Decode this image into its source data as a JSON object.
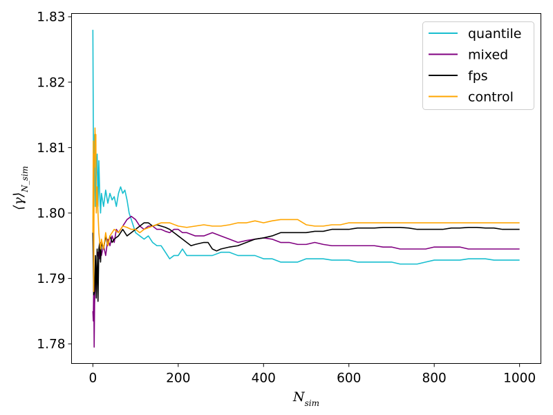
{
  "chart_data": {
    "type": "line",
    "title": "",
    "xlabel": "N_sim",
    "ylabel": "⟨γ⟩_{N_sim}",
    "xlim": [
      -50,
      1050
    ],
    "ylim": [
      1.777,
      1.8305
    ],
    "xticks": [
      0,
      200,
      400,
      600,
      800,
      1000
    ],
    "yticks": [
      1.78,
      1.79,
      1.8,
      1.81,
      1.82,
      1.83
    ],
    "xtick_labels": [
      "0",
      "200",
      "400",
      "600",
      "800",
      "1000"
    ],
    "ytick_labels": [
      "1.78",
      "1.79",
      "1.80",
      "1.81",
      "1.82",
      "1.83"
    ],
    "grid": false,
    "legend_position": "top-right",
    "series": [
      {
        "name": "quantile",
        "color": "#17becf",
        "x": [
          0,
          2,
          4,
          6,
          8,
          10,
          12,
          14,
          16,
          18,
          20,
          25,
          30,
          35,
          40,
          45,
          50,
          55,
          60,
          65,
          70,
          75,
          80,
          85,
          90,
          95,
          100,
          110,
          120,
          130,
          140,
          150,
          160,
          170,
          180,
          190,
          200,
          210,
          220,
          240,
          260,
          280,
          300,
          320,
          340,
          360,
          380,
          400,
          420,
          440,
          460,
          480,
          500,
          520,
          540,
          560,
          580,
          600,
          620,
          640,
          660,
          680,
          700,
          720,
          740,
          760,
          780,
          800,
          820,
          840,
          860,
          880,
          900,
          920,
          940,
          960,
          980,
          1000
        ],
        "y": [
          1.828,
          1.799,
          1.812,
          1.801,
          1.806,
          1.809,
          1.801,
          1.808,
          1.803,
          1.8,
          1.803,
          1.801,
          1.8035,
          1.8015,
          1.803,
          1.802,
          1.8025,
          1.801,
          1.803,
          1.804,
          1.803,
          1.8035,
          1.802,
          1.8,
          1.799,
          1.798,
          1.797,
          1.7965,
          1.796,
          1.7965,
          1.7955,
          1.795,
          1.795,
          1.794,
          1.793,
          1.7935,
          1.7935,
          1.7945,
          1.7935,
          1.7935,
          1.7935,
          1.7935,
          1.794,
          1.794,
          1.7935,
          1.7935,
          1.7935,
          1.793,
          1.793,
          1.7925,
          1.7925,
          1.7925,
          1.793,
          1.793,
          1.793,
          1.7928,
          1.7928,
          1.7928,
          1.7925,
          1.7925,
          1.7925,
          1.7925,
          1.7925,
          1.7922,
          1.7922,
          1.7922,
          1.7925,
          1.7928,
          1.7928,
          1.7928,
          1.7928,
          1.793,
          1.793,
          1.793,
          1.7928,
          1.7928,
          1.7928,
          1.7928
        ]
      },
      {
        "name": "mixed",
        "color": "#800080",
        "x": [
          0,
          1,
          2,
          3,
          4,
          6,
          8,
          10,
          12,
          15,
          18,
          20,
          25,
          30,
          35,
          40,
          45,
          50,
          55,
          60,
          70,
          80,
          90,
          100,
          110,
          120,
          130,
          140,
          150,
          160,
          170,
          180,
          190,
          200,
          210,
          220,
          240,
          260,
          280,
          300,
          320,
          340,
          360,
          380,
          400,
          420,
          440,
          460,
          480,
          500,
          520,
          540,
          560,
          580,
          600,
          620,
          640,
          660,
          680,
          700,
          720,
          740,
          760,
          780,
          800,
          820,
          840,
          860,
          880,
          900,
          920,
          940,
          960,
          980,
          1000
        ],
        "y": [
          1.785,
          1.7835,
          1.789,
          1.7795,
          1.786,
          1.791,
          1.789,
          1.793,
          1.794,
          1.793,
          1.7955,
          1.7935,
          1.795,
          1.7935,
          1.796,
          1.795,
          1.7965,
          1.7955,
          1.7975,
          1.797,
          1.798,
          1.799,
          1.7995,
          1.799,
          1.798,
          1.7975,
          1.798,
          1.798,
          1.7975,
          1.7975,
          1.7972,
          1.797,
          1.7975,
          1.7975,
          1.797,
          1.797,
          1.7965,
          1.7965,
          1.797,
          1.7965,
          1.796,
          1.7955,
          1.7958,
          1.796,
          1.7962,
          1.796,
          1.7955,
          1.7955,
          1.7952,
          1.7952,
          1.7955,
          1.7952,
          1.795,
          1.795,
          1.795,
          1.795,
          1.795,
          1.795,
          1.7948,
          1.7948,
          1.7945,
          1.7945,
          1.7945,
          1.7945,
          1.7948,
          1.7948,
          1.7948,
          1.7948,
          1.7945,
          1.7945,
          1.7945,
          1.7945,
          1.7945,
          1.7945,
          1.7945
        ]
      },
      {
        "name": "fps",
        "color": "#000000",
        "x": [
          0,
          2,
          4,
          6,
          8,
          10,
          12,
          14,
          16,
          18,
          20,
          25,
          30,
          35,
          40,
          45,
          50,
          60,
          70,
          80,
          90,
          100,
          110,
          120,
          130,
          140,
          150,
          160,
          170,
          180,
          190,
          200,
          210,
          220,
          230,
          240,
          260,
          270,
          280,
          290,
          300,
          320,
          340,
          360,
          380,
          400,
          420,
          440,
          460,
          480,
          500,
          520,
          540,
          560,
          580,
          600,
          620,
          640,
          660,
          680,
          700,
          720,
          740,
          760,
          780,
          800,
          820,
          840,
          860,
          880,
          900,
          920,
          940,
          960,
          980,
          1000
        ],
        "y": [
          1.797,
          1.7875,
          1.788,
          1.7935,
          1.787,
          1.7945,
          1.7865,
          1.7945,
          1.7955,
          1.7925,
          1.7955,
          1.7945,
          1.7965,
          1.795,
          1.7965,
          1.7955,
          1.796,
          1.7965,
          1.7975,
          1.7965,
          1.797,
          1.7975,
          1.798,
          1.7985,
          1.7985,
          1.798,
          1.7982,
          1.798,
          1.7978,
          1.7975,
          1.797,
          1.7965,
          1.796,
          1.7955,
          1.795,
          1.7952,
          1.7955,
          1.7955,
          1.7945,
          1.7942,
          1.7945,
          1.7948,
          1.795,
          1.7955,
          1.796,
          1.7962,
          1.7965,
          1.797,
          1.797,
          1.797,
          1.797,
          1.7972,
          1.7972,
          1.7975,
          1.7975,
          1.7975,
          1.7977,
          1.7977,
          1.7977,
          1.7978,
          1.7978,
          1.7978,
          1.7977,
          1.7975,
          1.7975,
          1.7975,
          1.7975,
          1.7977,
          1.7977,
          1.7978,
          1.7978,
          1.7977,
          1.7977,
          1.7975,
          1.7975,
          1.7975
        ]
      },
      {
        "name": "control",
        "color": "#ffa500",
        "x": [
          0,
          1,
          2,
          3,
          4,
          5,
          6,
          7,
          8,
          10,
          12,
          14,
          16,
          18,
          20,
          25,
          30,
          35,
          40,
          50,
          60,
          70,
          80,
          90,
          100,
          110,
          120,
          140,
          160,
          180,
          200,
          220,
          240,
          260,
          280,
          300,
          320,
          340,
          360,
          380,
          400,
          420,
          440,
          460,
          480,
          500,
          520,
          540,
          560,
          580,
          600,
          620,
          640,
          660,
          680,
          700,
          720,
          740,
          760,
          780,
          800,
          820,
          840,
          860,
          880,
          900,
          920,
          940,
          960,
          980,
          1000
        ],
        "y": [
          1.797,
          1.811,
          1.788,
          1.809,
          1.807,
          1.813,
          1.809,
          1.812,
          1.8,
          1.804,
          1.8,
          1.797,
          1.7955,
          1.7945,
          1.796,
          1.7945,
          1.797,
          1.795,
          1.7965,
          1.7975,
          1.797,
          1.798,
          1.7978,
          1.7975,
          1.7975,
          1.797,
          1.7975,
          1.798,
          1.7985,
          1.7985,
          1.798,
          1.7978,
          1.798,
          1.7982,
          1.798,
          1.798,
          1.7982,
          1.7985,
          1.7985,
          1.7988,
          1.7985,
          1.7988,
          1.799,
          1.799,
          1.799,
          1.7982,
          1.798,
          1.798,
          1.7982,
          1.7982,
          1.7985,
          1.7985,
          1.7985,
          1.7985,
          1.7985,
          1.7985,
          1.7985,
          1.7985,
          1.7985,
          1.7985,
          1.7985,
          1.7985,
          1.7985,
          1.7985,
          1.7985,
          1.7985,
          1.7985,
          1.7985,
          1.7985,
          1.7985,
          1.7985
        ]
      }
    ]
  }
}
